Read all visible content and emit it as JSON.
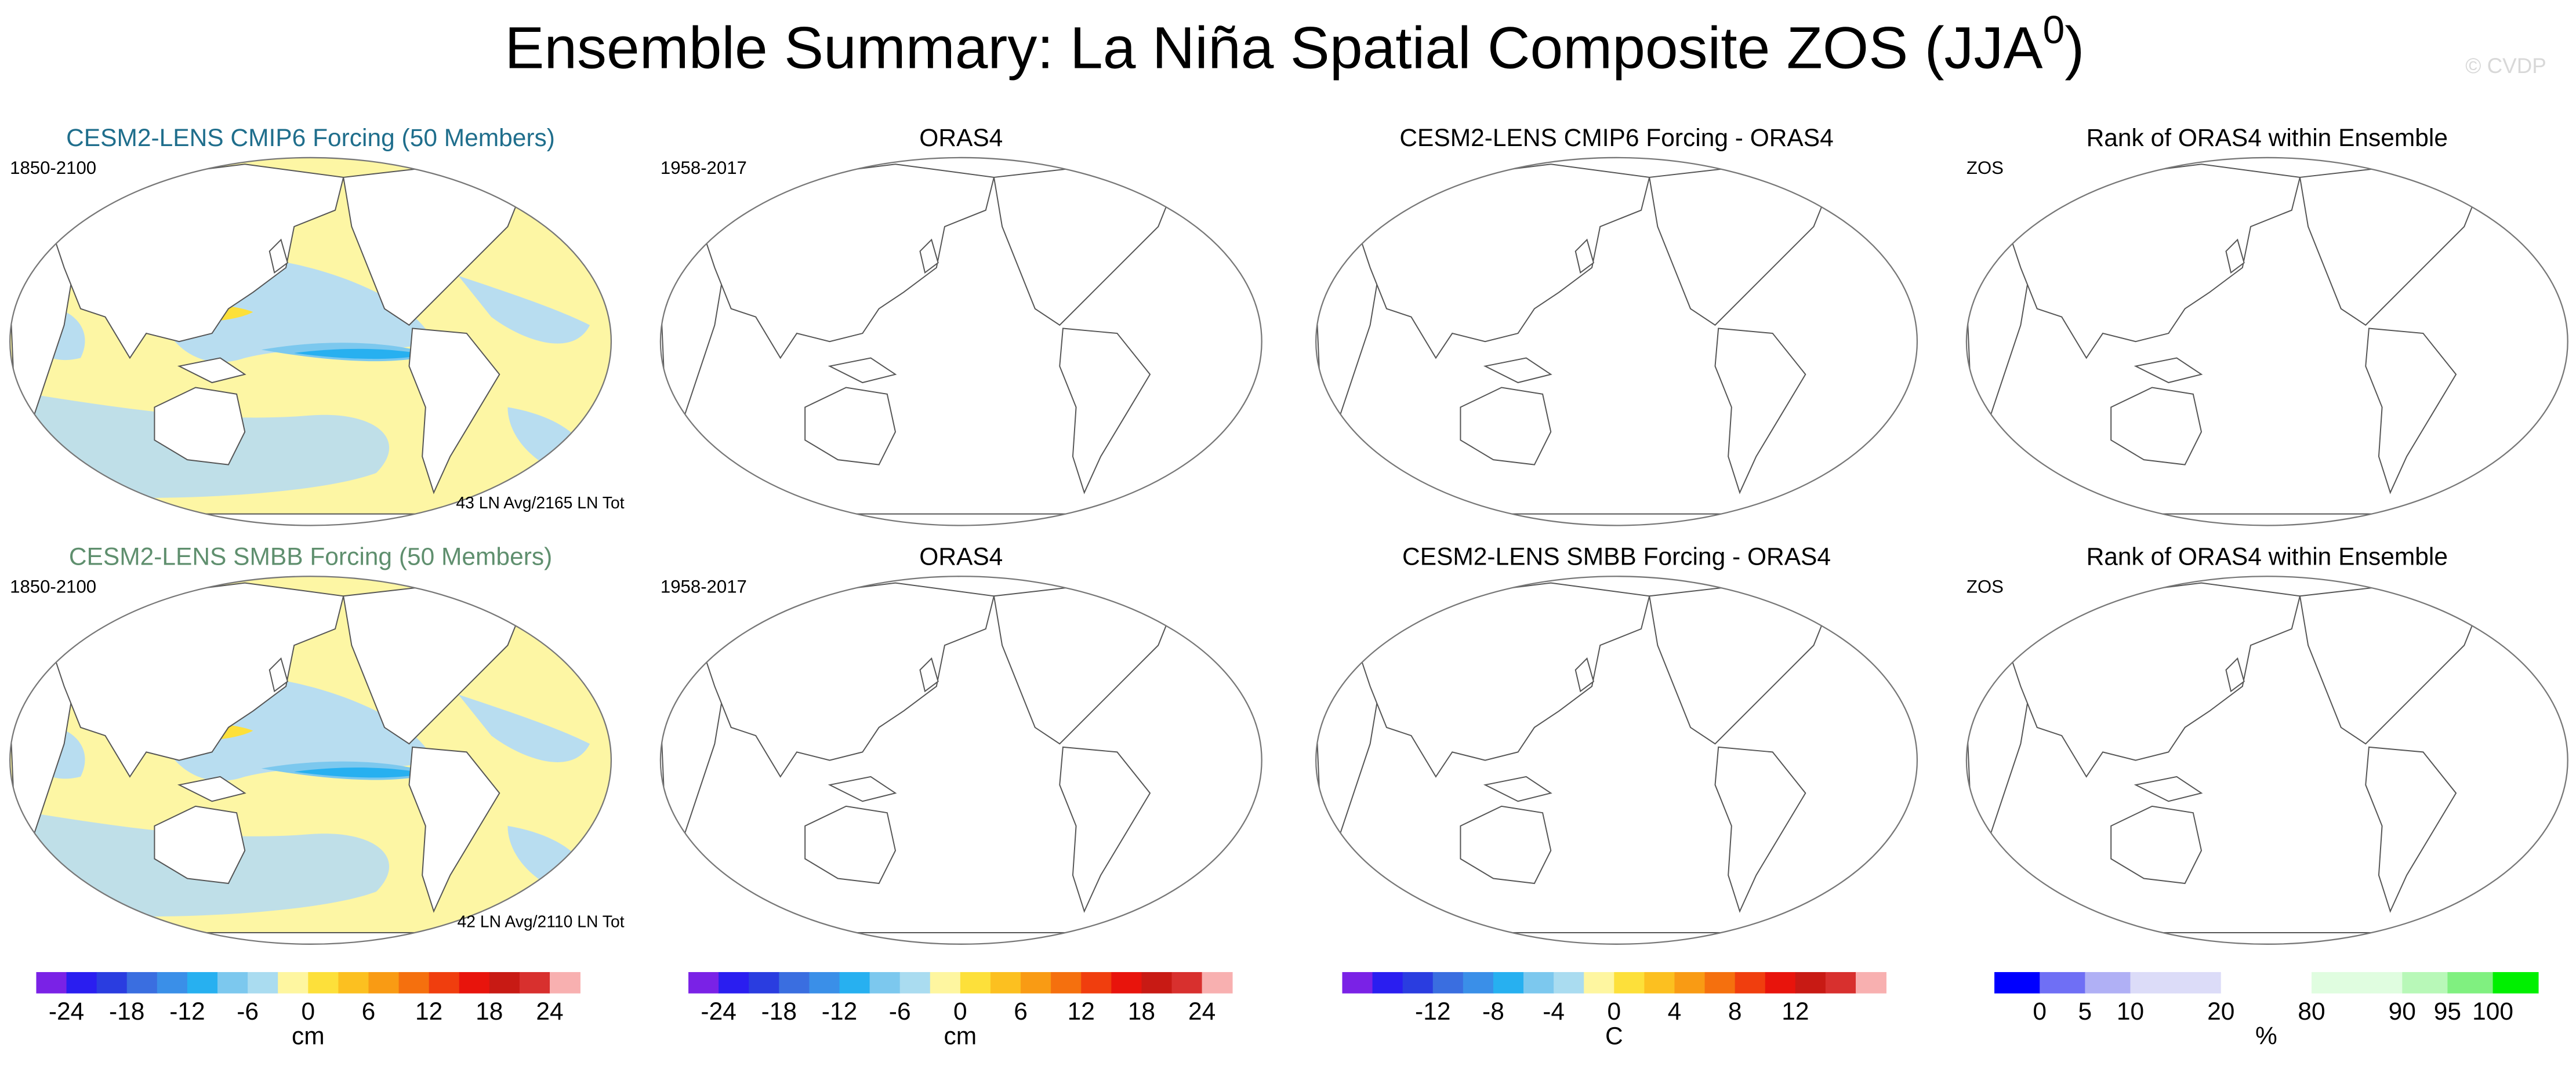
{
  "header": {
    "title": "Ensemble Summary: La Niña Spatial Composite ZOS (JJA",
    "title_superscript": "0",
    "title_end": ")",
    "watermark": "© CVDP"
  },
  "panels": [
    {
      "title": "CESM2-LENS CMIP6 Forcing (50 Members)",
      "title_color": "#1f6e8c",
      "left_label": "1850-2100",
      "bottom_label": "43 LN Avg/2165 LN Tot",
      "shaded": true
    },
    {
      "title": "ORAS4",
      "title_color": "#000000",
      "left_label": "1958-2017",
      "shaded": false
    },
    {
      "title": "CESM2-LENS CMIP6 Forcing - ORAS4",
      "title_color": "#000000",
      "shaded": false
    },
    {
      "title": "Rank of ORAS4 within Ensemble",
      "title_color": "#000000",
      "left_label": "ZOS",
      "shaded": false
    },
    {
      "title": "CESM2-LENS SMBB Forcing (50 Members)",
      "title_color": "#5f8f6e",
      "left_label": "1850-2100",
      "bottom_label": "42 LN Avg/2110 LN Tot",
      "shaded": true
    },
    {
      "title": "ORAS4",
      "title_color": "#000000",
      "left_label": "1958-2017",
      "shaded": false
    },
    {
      "title": "CESM2-LENS SMBB Forcing - ORAS4",
      "title_color": "#000000",
      "shaded": false
    },
    {
      "title": "Rank of ORAS4 within Ensemble",
      "title_color": "#000000",
      "left_label": "ZOS",
      "shaded": false
    }
  ],
  "colorbars": [
    {
      "colors": [
        "#7a22e6",
        "#2a1ef0",
        "#2a3de0",
        "#3a6ee0",
        "#3a8fe8",
        "#27b0f0",
        "#7cc8ee",
        "#aadcf0",
        "#fef6a0",
        "#fde03a",
        "#fcc020",
        "#f99b14",
        "#f5700e",
        "#f03e0e",
        "#e8140c",
        "#c81a14",
        "#d8302e",
        "#f8b0b0"
      ],
      "levels": [
        -24,
        null,
        -18,
        null,
        -12,
        null,
        -6,
        null,
        0,
        null,
        6,
        null,
        12,
        null,
        18,
        null,
        24
      ],
      "unit": "cm"
    },
    {
      "colors": [
        "#7a22e6",
        "#2a1ef0",
        "#2a3de0",
        "#3a6ee0",
        "#3a8fe8",
        "#27b0f0",
        "#7cc8ee",
        "#aadcf0",
        "#fef6a0",
        "#fde03a",
        "#fcc020",
        "#f99b14",
        "#f5700e",
        "#f03e0e",
        "#e8140c",
        "#c81a14",
        "#d8302e",
        "#f8b0b0"
      ],
      "levels": [
        -24,
        null,
        -18,
        null,
        -12,
        null,
        -6,
        null,
        0,
        null,
        6,
        null,
        12,
        null,
        18,
        null,
        24
      ],
      "unit": "cm"
    },
    {
      "colors": [
        "#7a22e6",
        "#2a1ef0",
        "#2a3de0",
        "#3a6ee0",
        "#3a8fe8",
        "#27b0f0",
        "#7cc8ee",
        "#aadcf0",
        "#fef6a0",
        "#fde03a",
        "#fcc020",
        "#f99b14",
        "#f5700e",
        "#f03e0e",
        "#e8140c",
        "#c81a14",
        "#d8302e",
        "#f8b0b0"
      ],
      "levels": [
        null,
        null,
        -12,
        null,
        -8,
        null,
        -4,
        null,
        0,
        null,
        4,
        null,
        8,
        null,
        12,
        null,
        null
      ],
      "unit": "C"
    },
    {
      "colors": [
        "#0000ff",
        "#6f6ff5",
        "#b0b0f5",
        "#dcdcf8",
        "#dcdcf8",
        "#ffffff",
        "#ffffff",
        "#e0fde0",
        "#e0fde0",
        "#b8f8b8",
        "#80f080",
        "#00f000"
      ],
      "levels": [
        0,
        5,
        10,
        null,
        20,
        null,
        80,
        null,
        90,
        95,
        100
      ],
      "unit": "%"
    }
  ]
}
